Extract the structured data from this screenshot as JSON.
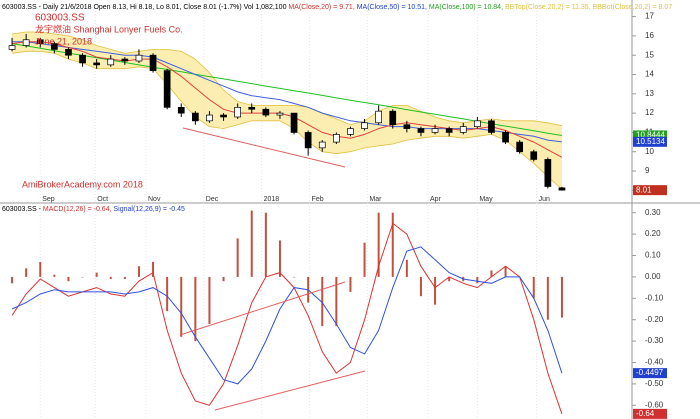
{
  "chart_data": [
    {
      "type": "candlestick",
      "header": [
        {
          "text": "603003.SS - Daily 21/6/2018 Open 8.13, Hi 8.18, Lo 8.01, Close 8.01 (-1.7%) Vol 1,082,100 ",
          "color": "#000000"
        },
        {
          "text": "MA(Close,20) = 9.71, ",
          "color": "#d03030"
        },
        {
          "text": "MA(Close,50) = 10.51, ",
          "color": "#2040d0"
        },
        {
          "text": "MA(Close,100) = 10.84, ",
          "color": "#20a020"
        },
        {
          "text": "BBTop(Close,20,2) = 11.35, ",
          "color": "#e0c040"
        },
        {
          "text": "BBBot(Close,20,2) = 8.07",
          "color": "#e0c040"
        }
      ],
      "annotations": [
        "603003.SS",
        "龙宇燃油 Shanghai Lonyer Fuels Co.",
        "June 21, 2018",
        "AmiBrokerAcademy.com  2018"
      ],
      "open": [
        15.3,
        15.5,
        15.8,
        15.6,
        15.3,
        15.0,
        14.6,
        14.5,
        14.8,
        14.7,
        15.0,
        14.2,
        12.3,
        12.0,
        11.6,
        11.9,
        11.8,
        12.3,
        12.2,
        11.9,
        12.0,
        11.0,
        10.2,
        10.5,
        10.9,
        11.2,
        11.5,
        12.1,
        11.4,
        11.2,
        11.0,
        11.2,
        11.0,
        11.3,
        11.6,
        11.0,
        10.5,
        10.0,
        9.6,
        8.13
      ],
      "high": [
        15.9,
        16.1,
        15.9,
        15.7,
        15.4,
        15.1,
        14.8,
        15.0,
        14.9,
        15.3,
        15.1,
        14.3,
        12.5,
        12.1,
        12.1,
        12.0,
        12.5,
        12.5,
        12.3,
        12.1,
        12.0,
        11.1,
        10.6,
        11.0,
        11.3,
        11.7,
        12.4,
        12.2,
        11.6,
        11.3,
        11.4,
        11.3,
        11.5,
        11.8,
        11.7,
        11.1,
        10.6,
        10.1,
        9.7,
        8.18
      ],
      "low": [
        15.2,
        15.4,
        15.4,
        15.1,
        14.8,
        14.4,
        14.3,
        14.4,
        14.5,
        14.6,
        14.1,
        12.2,
        11.8,
        11.4,
        11.5,
        11.6,
        11.7,
        12.0,
        11.8,
        11.7,
        10.9,
        9.8,
        10.0,
        10.4,
        10.8,
        11.1,
        11.4,
        11.2,
        11.0,
        10.8,
        10.9,
        10.8,
        10.9,
        11.2,
        10.9,
        10.4,
        9.9,
        9.5,
        8.1,
        8.01
      ],
      "close": [
        15.5,
        15.8,
        15.6,
        15.3,
        15.0,
        14.6,
        14.5,
        14.8,
        14.7,
        15.0,
        14.2,
        12.3,
        12.0,
        11.6,
        11.9,
        11.8,
        12.3,
        12.2,
        11.9,
        12.0,
        11.0,
        10.2,
        10.5,
        10.9,
        11.2,
        11.5,
        12.1,
        11.4,
        11.2,
        11.0,
        11.2,
        11.0,
        11.3,
        11.6,
        11.0,
        10.5,
        10.0,
        9.6,
        8.2,
        8.01
      ],
      "band_color": "#fbeeb0",
      "series": [
        {
          "color": "#e0c040",
          "values": [
            16.1,
            16.2,
            16.2,
            16.1,
            16.0,
            15.8,
            15.5,
            15.3,
            15.1,
            15.2,
            15.3,
            15.3,
            15.2,
            14.8,
            14.1,
            13.2,
            12.6,
            12.4,
            12.4,
            12.4,
            12.4,
            12.3,
            12.0,
            11.7,
            11.4,
            11.6,
            12.1,
            12.4,
            12.4,
            12.1,
            11.8,
            11.6,
            11.5,
            11.6,
            11.7,
            11.6,
            11.6,
            11.6,
            11.5,
            11.35
          ]
        },
        {
          "color": "#e0c040",
          "values": [
            15.1,
            15.2,
            15.2,
            15.1,
            14.8,
            14.6,
            14.3,
            14.3,
            14.3,
            14.4,
            14.3,
            13.5,
            12.6,
            11.8,
            11.3,
            11.2,
            11.4,
            11.6,
            11.6,
            11.6,
            11.2,
            10.5,
            10.0,
            9.9,
            10.0,
            10.2,
            10.3,
            10.4,
            10.6,
            10.7,
            10.8,
            10.8,
            10.7,
            10.8,
            10.9,
            10.6,
            10.0,
            9.4,
            8.7,
            8.07
          ]
        },
        {
          "color": "#20c020",
          "values": [
            15.6,
            15.48,
            15.36,
            15.23,
            15.11,
            14.99,
            14.87,
            14.75,
            14.62,
            14.5,
            14.38,
            14.26,
            14.14,
            14.01,
            13.89,
            13.77,
            13.65,
            13.53,
            13.4,
            13.28,
            13.16,
            13.04,
            12.92,
            12.79,
            12.67,
            12.55,
            12.43,
            12.31,
            12.18,
            12.06,
            11.94,
            11.82,
            11.7,
            11.57,
            11.45,
            11.33,
            11.21,
            11.09,
            10.96,
            10.84
          ]
        },
        {
          "color": "#4060e0",
          "values": [
            15.7,
            15.7,
            15.6,
            15.5,
            15.4,
            15.3,
            15.2,
            15.1,
            15.0,
            15.0,
            14.9,
            14.6,
            14.3,
            14.0,
            13.7,
            13.4,
            13.1,
            12.9,
            12.8,
            12.7,
            12.5,
            12.3,
            12.0,
            11.8,
            11.6,
            11.5,
            11.4,
            11.3,
            11.3,
            11.2,
            11.2,
            11.2,
            11.2,
            11.2,
            11.1,
            11.0,
            10.9,
            10.8,
            10.6,
            10.51
          ]
        },
        {
          "color": "#e04040",
          "values": [
            15.6,
            15.7,
            15.7,
            15.6,
            15.4,
            15.2,
            14.9,
            14.8,
            14.7,
            14.8,
            14.8,
            14.4,
            13.9,
            13.3,
            12.7,
            12.2,
            12.0,
            12.0,
            12.0,
            12.0,
            11.8,
            11.4,
            11.0,
            10.8,
            10.7,
            10.9,
            11.2,
            11.4,
            11.5,
            11.4,
            11.3,
            11.2,
            11.1,
            11.2,
            11.3,
            11.1,
            10.8,
            10.5,
            10.1,
            9.71
          ]
        }
      ],
      "xticks": [
        {
          "value": 2.0,
          "label": "Sep"
        },
        {
          "value": 5.9,
          "label": "Oct"
        },
        {
          "value": 9.5,
          "label": "Nov"
        },
        {
          "value": 13.6,
          "label": "Dec"
        },
        {
          "value": 17.7,
          "label": "2018"
        },
        {
          "value": 21.1,
          "label": "Feb"
        },
        {
          "value": 25.2,
          "label": "Mar"
        },
        {
          "value": 29.5,
          "label": "Apr"
        },
        {
          "value": 33.0,
          "label": "May"
        },
        {
          "value": 37.2,
          "label": "Jun"
        }
      ],
      "ylim": [
        7.5,
        17.6
      ],
      "yticks": [
        8,
        9,
        10,
        11,
        12,
        13,
        14,
        15,
        16,
        17
      ],
      "price_labels": [
        {
          "value": 10.8444,
          "color": "#20a020"
        },
        {
          "value": 10.5134,
          "color": "#2040d0"
        },
        {
          "value": 8.01,
          "color": "#c03020"
        }
      ]
    },
    {
      "type": "macd",
      "header": [
        {
          "text": "603003.SS - ",
          "color": "#000000"
        },
        {
          "text": "MACD(12,26) = -0.64, ",
          "color": "#d03030"
        },
        {
          "text": "Signal(12,26,9) = -0.45",
          "color": "#2040d0"
        }
      ],
      "histogram": {
        "color": "#c05040",
        "values": [
          -0.03,
          0.04,
          0.07,
          0.01,
          -0.02,
          0,
          0.02,
          -0.01,
          -0.01,
          0.05,
          0.07,
          -0.16,
          -0.28,
          -0.3,
          -0.22,
          -0.02,
          0.18,
          0.31,
          0.3,
          0.17,
          0,
          -0.12,
          -0.23,
          -0.23,
          -0.07,
          0.16,
          0.3,
          0.3,
          0.08,
          -0.09,
          -0.13,
          -0.02,
          -0.02,
          -0.03,
          0.03,
          0.05,
          0,
          -0.1,
          -0.2,
          -0.19
        ]
      },
      "series": [
        {
          "color": "#e03030",
          "values": [
            -0.18,
            -0.08,
            -0.01,
            -0.05,
            -0.09,
            -0.07,
            -0.05,
            -0.08,
            -0.09,
            -0.02,
            0.02,
            -0.25,
            -0.45,
            -0.58,
            -0.6,
            -0.5,
            -0.32,
            -0.12,
            0.0,
            0.02,
            -0.05,
            -0.18,
            -0.35,
            -0.45,
            -0.4,
            -0.2,
            0.05,
            0.25,
            0.2,
            0.05,
            -0.05,
            0.0,
            -0.03,
            -0.05,
            0.0,
            0.05,
            0.0,
            -0.2,
            -0.45,
            -0.64
          ]
        },
        {
          "color": "#3050e0",
          "values": [
            -0.15,
            -0.12,
            -0.08,
            -0.06,
            -0.07,
            -0.07,
            -0.07,
            -0.07,
            -0.08,
            -0.07,
            -0.05,
            -0.09,
            -0.17,
            -0.28,
            -0.38,
            -0.48,
            -0.5,
            -0.43,
            -0.3,
            -0.15,
            -0.05,
            -0.06,
            -0.12,
            -0.22,
            -0.33,
            -0.36,
            -0.25,
            -0.05,
            0.12,
            0.14,
            0.08,
            0.02,
            -0.01,
            -0.02,
            -0.03,
            0.0,
            0.0,
            -0.1,
            -0.25,
            -0.45
          ]
        }
      ],
      "ylim": [
        -0.664,
        0.336
      ],
      "yticks": [
        {
          "value": 0.3,
          "label": "0.30"
        },
        {
          "value": 0.2,
          "label": "0.20"
        },
        {
          "value": 0.1,
          "label": "0.10"
        },
        {
          "value": 0,
          "label": "0.00"
        },
        {
          "value": -0.1,
          "label": "-0.10"
        },
        {
          "value": -0.2,
          "label": "-0.20"
        },
        {
          "value": -0.3,
          "label": "-0.30"
        },
        {
          "value": -0.4,
          "label": "-0.40"
        },
        {
          "value": -0.5,
          "label": "-0.50"
        },
        {
          "value": -0.6,
          "label": "-0.60"
        }
      ],
      "price_labels": [
        {
          "value": -0.4497,
          "color": "#2040d0"
        },
        {
          "value": -0.64,
          "color": "#d03030"
        }
      ]
    }
  ]
}
